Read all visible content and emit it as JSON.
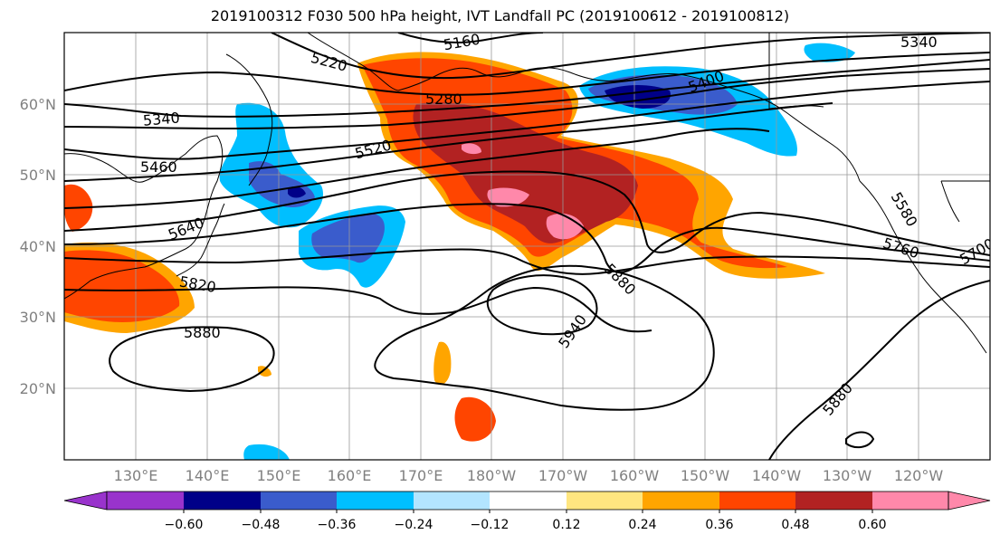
{
  "title": "2019100312 F030 500 hPa height, IVT Landfall PC (2019100612 - 2019100812)",
  "map": {
    "lat_labels": [
      "60°N",
      "50°N",
      "40°N",
      "30°N",
      "20°N"
    ],
    "lon_labels": [
      "130°E",
      "140°E",
      "150°E",
      "160°E",
      "170°E",
      "180°W",
      "170°W",
      "160°W",
      "150°W",
      "140°W",
      "130°W",
      "120°W"
    ],
    "contour_labels": [
      "5160",
      "5220",
      "5280",
      "5340",
      "5400",
      "5460",
      "5520",
      "5580",
      "5640",
      "5760",
      "5820",
      "5880",
      "5880",
      "5880",
      "5940",
      "5700",
      "5340"
    ],
    "ivt_colors": {
      "neg_060": "#9933cc",
      "neg_048": "#000088",
      "neg_036": "#3a5ccc",
      "neg_024": "#00bfff",
      "neg_012": "#b3e5ff",
      "pos_012": "#ffe680",
      "pos_024": "#ffa500",
      "pos_036": "#ff4500",
      "pos_048": "#b22222",
      "pos_060": "#ff88aa"
    }
  },
  "colorbar": {
    "tick_labels": [
      "−0.60",
      "−0.48",
      "−0.36",
      "−0.24",
      "−0.12",
      "0.12",
      "0.24",
      "0.36",
      "0.48",
      "0.60"
    ],
    "colors": [
      "#9933cc",
      "#000088",
      "#3a5ccc",
      "#00bfff",
      "#b3e5ff",
      "#ffffff",
      "#ffe680",
      "#ffa500",
      "#ff4500",
      "#b22222",
      "#ff88aa"
    ]
  }
}
